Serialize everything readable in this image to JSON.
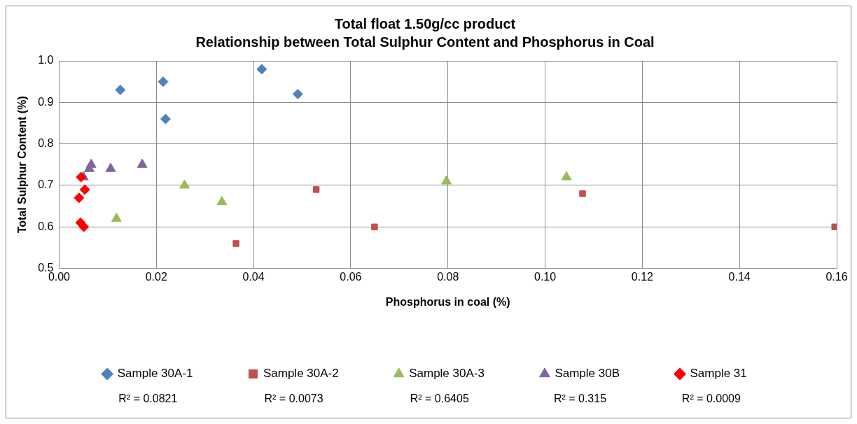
{
  "chart_data": {
    "type": "scatter",
    "title": "Total float 1.50g/cc product",
    "subtitle": "Relationship between Total Sulphur Content and Phosphorus in Coal",
    "xlabel": "Phosphorus in coal (%)",
    "ylabel": "Total Sulphur Content (%)",
    "xlim": [
      0,
      0.16
    ],
    "xticks": [
      {
        "value": 0,
        "label": "0.00"
      },
      {
        "value": 0.02,
        "label": "0.02"
      },
      {
        "value": 0.04,
        "label": "0.04"
      },
      {
        "value": 0.06,
        "label": "0.06"
      },
      {
        "value": 0.08,
        "label": "0.08"
      },
      {
        "value": 0.1,
        "label": "0.10"
      },
      {
        "value": 0.12,
        "label": "0.12"
      },
      {
        "value": 0.14,
        "label": "0.14"
      },
      {
        "value": 0.16,
        "label": "0.16"
      }
    ],
    "ylim": [
      0.5,
      1.0
    ],
    "yticks": [
      0.5,
      0.6,
      0.7,
      0.8,
      0.9,
      {
        "value": 1.0,
        "label": "1.0"
      }
    ],
    "grid": true,
    "legend": "bottom",
    "series": [
      {
        "name": "Sample 30A-1",
        "color": "#4f81bd",
        "marker": "diamond",
        "x": [
          0.0126,
          0.0214,
          0.0219,
          0.0417,
          0.0491
        ],
        "values": [
          0.93,
          0.95,
          0.86,
          0.98,
          0.92
        ]
      },
      {
        "name": "Sample 30A-2",
        "color": "#c0504d",
        "marker": "square",
        "x": [
          0.0364,
          0.0529,
          0.0649,
          0.1077,
          0.1596
        ],
        "values": [
          0.56,
          0.69,
          0.6,
          0.68,
          0.6
        ]
      },
      {
        "name": "Sample 30A-3",
        "color": "#9bbb59",
        "marker": "triangle",
        "x": [
          0.0118,
          0.0258,
          0.0335,
          0.0797,
          0.1044
        ],
        "values": [
          0.62,
          0.7,
          0.66,
          0.71,
          0.72
        ]
      },
      {
        "name": "Sample 30B",
        "color": "#8064a2",
        "marker": "triangle",
        "x": [
          0.005,
          0.0062,
          0.0066,
          0.0106,
          0.0171
        ],
        "values": [
          0.72,
          0.74,
          0.75,
          0.74,
          0.75
        ]
      },
      {
        "name": "Sample 31",
        "color": "#ff0000",
        "marker": "diamond",
        "x": [
          0.0041,
          0.0044,
          0.0045,
          0.0051,
          0.0053
        ],
        "values": [
          0.67,
          0.61,
          0.72,
          0.6,
          0.69
        ]
      }
    ],
    "annotations": [
      "R² = 0.0821",
      "R² = 0.0073",
      "R² = 0.6405",
      "R² = 0.315",
      "R² = 0.0009"
    ]
  }
}
